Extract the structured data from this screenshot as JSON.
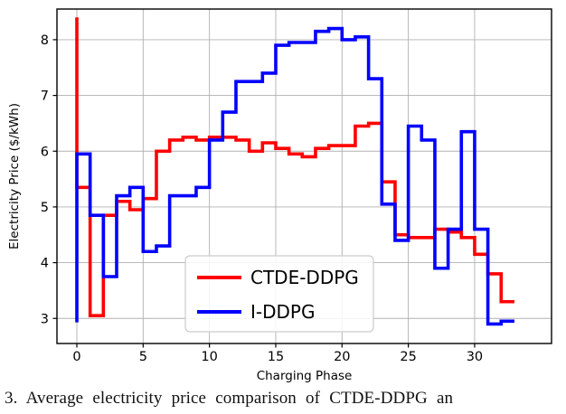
{
  "figure": {
    "caption": "3.  Average electricity price comparison of CTDE-DDPG an"
  },
  "chart_data": {
    "type": "step-line",
    "title": "",
    "xlabel": "Charging Phase",
    "ylabel": "Electricity Price ($/kWh)",
    "xlim": [
      -1.5,
      35.8
    ],
    "ylim": [
      2.55,
      8.55
    ],
    "xticks": [
      0,
      5,
      10,
      15,
      20,
      25,
      30
    ],
    "yticks": [
      3,
      4,
      5,
      6,
      7,
      8
    ],
    "grid": true,
    "grid_color": "#b0b0b0",
    "border_color": "#000000",
    "step_mode": "pre",
    "phases_start": 0,
    "phases_end": 33,
    "legend_position": "lower center",
    "legend_border_color": "#cccccc",
    "series": [
      {
        "name": "CTDE-DDPG",
        "color": "#ff0000",
        "start_value": 8.4,
        "values": [
          5.35,
          3.05,
          4.85,
          5.1,
          4.95,
          5.15,
          6.0,
          6.2,
          6.25,
          6.2,
          6.25,
          6.25,
          6.2,
          6.0,
          6.15,
          6.05,
          5.95,
          5.9,
          6.05,
          6.1,
          6.1,
          6.45,
          6.5,
          5.45,
          4.5,
          4.45,
          4.45,
          4.6,
          4.55,
          4.45,
          4.15,
          3.8,
          3.3
        ]
      },
      {
        "name": "I-DDPG",
        "color": "#0000ff",
        "start_value": 2.93,
        "values": [
          5.95,
          4.85,
          3.75,
          5.2,
          5.35,
          4.2,
          4.3,
          5.2,
          5.2,
          5.35,
          6.2,
          6.7,
          7.25,
          7.25,
          7.4,
          7.9,
          7.95,
          7.95,
          8.15,
          8.2,
          8.0,
          8.05,
          7.3,
          5.05,
          4.4,
          6.45,
          6.2,
          3.9,
          4.6,
          6.35,
          4.6,
          2.9,
          2.95
        ]
      }
    ]
  }
}
